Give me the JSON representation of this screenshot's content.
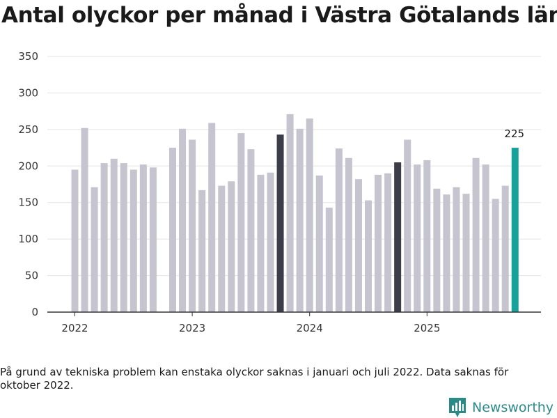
{
  "title": "Antal olyckor per månad i Västra Götalands län",
  "footnote": "På grund av tekniska problem kan enstaka olyckor saknas i januari och juli 2022. Data saknas för oktober 2022.",
  "brand": {
    "name": "Newsworthy",
    "icon": "newsworthy-logo-icon"
  },
  "colors": {
    "default": "#c5c4cf",
    "highlight": "#3d3d4a",
    "latest": "#14a29a",
    "grid": "#e3e3e3",
    "axis": "#333333"
  },
  "chart_data": {
    "type": "bar",
    "title": "Antal olyckor per månad i Västra Götalands län",
    "xlabel": "",
    "ylabel": "",
    "ylim": [
      0,
      350
    ],
    "yticks": [
      0,
      50,
      100,
      150,
      200,
      250,
      300,
      350
    ],
    "xticks": [
      {
        "label": "2022",
        "month": 0
      },
      {
        "label": "2023",
        "month": 12
      },
      {
        "label": "2024",
        "month": 24
      },
      {
        "label": "2025",
        "month": 36
      }
    ],
    "values": [
      195,
      252,
      171,
      204,
      210,
      204,
      195,
      202,
      198,
      null,
      225,
      251,
      236,
      167,
      259,
      173,
      179,
      245,
      223,
      188,
      191,
      243,
      271,
      251,
      265,
      187,
      143,
      224,
      211,
      182,
      153,
      188,
      190,
      205,
      236,
      202,
      208,
      169,
      161,
      171,
      162,
      211,
      202,
      155,
      173,
      225
    ],
    "highlight_months": [
      21,
      33
    ],
    "latest_label": "225",
    "legend": "none",
    "grid": true
  }
}
